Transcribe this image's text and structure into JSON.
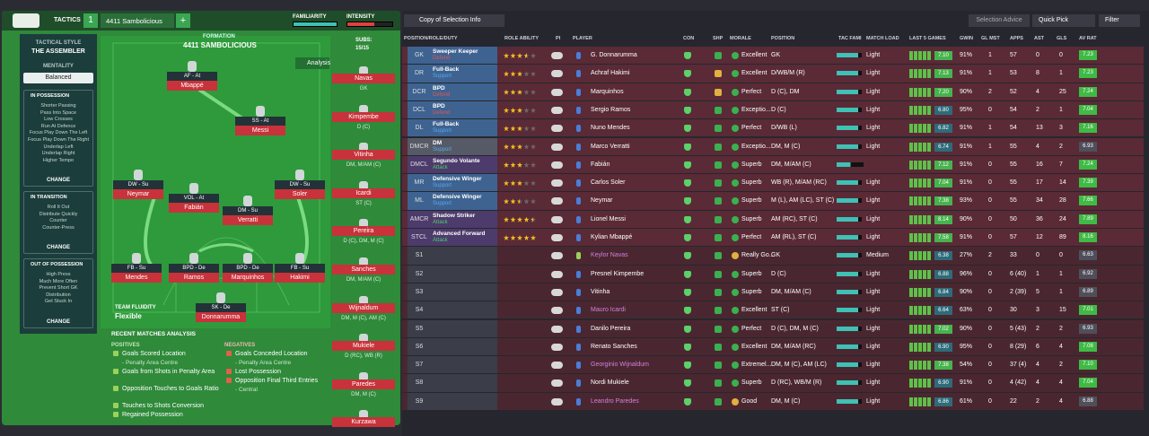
{
  "header": {
    "tactics": "TACTICS",
    "slot": "1",
    "tactic_name": "4411 Sambolicious",
    "add": "+",
    "familiarity": "FAMILIARITY",
    "intensity": "INTENSITY"
  },
  "sidebar": {
    "style_label": "TACTICAL STYLE",
    "style": "THE ASSEMBLER",
    "mentality_label": "MENTALITY",
    "mentality": "Balanced",
    "sections": [
      {
        "title": "IN POSSESSION",
        "items": [
          "Shorter Passing",
          "Pass Into Space",
          "Low Crosses",
          "Run At Defence",
          "Focus Play Down The Left",
          "Focus Play Down The Right",
          "Underlap Left",
          "Underlap Right",
          "Higher Tempo"
        ],
        "button": "CHANGE"
      },
      {
        "title": "IN TRANSITION",
        "items": [
          "Roll It Out",
          "Distribute Quickly",
          "Counter",
          "Counter-Press"
        ],
        "button": "CHANGE"
      },
      {
        "title": "OUT OF POSSESSION",
        "items": [
          "High Press",
          "Much More Often",
          "Prevent Short GK",
          "Distribution",
          "Get Stuck In"
        ],
        "button": "CHANGE"
      }
    ]
  },
  "formation": {
    "label": "FORMATION",
    "name": "4411 SAMBOLICIOUS",
    "subs_label": "SUBS:",
    "subs_count": "15/15",
    "analysis": "Analysis",
    "fluidity_label": "TEAM FLUIDITY",
    "fluidity": "Flexible",
    "players": [
      {
        "role": "AF - At",
        "name": "Mbappé"
      },
      {
        "role": "SS - At",
        "name": "Messi"
      },
      {
        "role": "DW - Su",
        "name": "Neymar"
      },
      {
        "role": "VOL - At",
        "name": "Fabián"
      },
      {
        "role": "DM - Su",
        "name": "Verratti"
      },
      {
        "role": "DW - Su",
        "name": "Soler"
      },
      {
        "role": "FB - Su",
        "name": "Mendes"
      },
      {
        "role": "BPD - De",
        "name": "Ramos"
      },
      {
        "role": "BPD - De",
        "name": "Marquinhos"
      },
      {
        "role": "FB - Su",
        "name": "Hakimi"
      },
      {
        "role": "SK - De",
        "name": "Donnarumma"
      }
    ],
    "bench": [
      {
        "name": "Navas",
        "position": "GK"
      },
      {
        "name": "Kimpembe",
        "position": "D (C)"
      },
      {
        "name": "Vitinha",
        "position": "DM, M/AM (C)"
      },
      {
        "name": "Icardi",
        "position": "ST (C)"
      },
      {
        "name": "Pereira",
        "position": "D (C), DM, M (C)"
      },
      {
        "name": "Sanches",
        "position": "DM, M/AM (C)"
      },
      {
        "name": "Wijnaldum",
        "position": "DM, M (C), AM (C)"
      },
      {
        "name": "Mukiele",
        "position": "D (RC), WB (R)"
      },
      {
        "name": "Paredes",
        "position": "DM, M (C)"
      },
      {
        "name": "Kurzawa"
      }
    ]
  },
  "analysis": {
    "title": "RECENT MATCHES ANALYSIS",
    "positives_label": "POSITIVES",
    "positives": [
      {
        "text": "Goals Scored Location",
        "detail": "- Penalty Area Centre"
      },
      {
        "text": "Goals from Shots in Penalty Area"
      },
      {
        "text": "Opposition Touches to Goals Ratio"
      },
      {
        "text": "Touches to Shots Conversion"
      },
      {
        "text": "Regained Possession"
      }
    ],
    "negatives_label": "NEGATIVES",
    "negatives": [
      {
        "text": "Goals Conceded Location",
        "detail": "- Penalty Area Centre"
      },
      {
        "text": "Lost Possession"
      },
      {
        "text": "Opposition Final Third Entries",
        "detail": "- Central"
      }
    ]
  },
  "table": {
    "toolbar": {
      "view": "Copy of Selection Info",
      "advice": "Selection Advice",
      "quick_pick": "Quick Pick",
      "filter": "Filter"
    },
    "columns": [
      "POSITION/ROLE/DUTY",
      "ROLE ABILITY",
      "PI",
      "PLAYER",
      "CON",
      "SHP",
      "MORALE",
      "POSITION",
      "TAC FAMI",
      "MATCH LOAD",
      "LAST 5 GAMES",
      "GWIN",
      "GL MST",
      "APPS",
      "AST",
      "GLS",
      "AV RAT"
    ],
    "rows": [
      {
        "pos": "GK",
        "role": "Sweeper Keeper",
        "duty": "Defend",
        "stars": 3.5,
        "player": "G. Donnarumma",
        "morale": "Excellent",
        "position": "GK",
        "load": "Light",
        "form": "7.10",
        "gwin": "91%",
        "glmst": "1",
        "apps": "57",
        "ast": "0",
        "gls": "0",
        "avrat": "7.23"
      },
      {
        "pos": "DR",
        "role": "Full-Back",
        "duty": "Support",
        "stars": 3,
        "player": "Achraf Hakimi",
        "morale": "Excellent",
        "position": "D/WB/M (R)",
        "load": "Light",
        "form": "7.13",
        "gwin": "91%",
        "glmst": "1",
        "apps": "53",
        "ast": "8",
        "gls": "1",
        "avrat": "7.23"
      },
      {
        "pos": "DCR",
        "role": "BPD",
        "duty": "Defend",
        "stars": 3,
        "player": "Marquinhos",
        "morale": "Perfect",
        "position": "D (C), DM",
        "load": "Light",
        "form": "7.20",
        "gwin": "90%",
        "glmst": "2",
        "apps": "52",
        "ast": "4",
        "gls": "25",
        "avrat": "7.24"
      },
      {
        "pos": "DCL",
        "role": "BPD",
        "duty": "Defend",
        "stars": 3,
        "player": "Sergio Ramos",
        "morale": "Exceptio...",
        "position": "D (C)",
        "load": "Light",
        "form": "6.80",
        "gwin": "95%",
        "glmst": "0",
        "apps": "54",
        "ast": "2",
        "gls": "1",
        "avrat": "7.04"
      },
      {
        "pos": "DL",
        "role": "Full-Back",
        "duty": "Support",
        "stars": 3,
        "player": "Nuno Mendes",
        "morale": "Perfect",
        "position": "D/WB (L)",
        "load": "Light",
        "form": "6.82",
        "gwin": "91%",
        "glmst": "1",
        "apps": "54",
        "ast": "13",
        "gls": "3",
        "avrat": "7.16"
      },
      {
        "pos": "DMCR",
        "role": "DM",
        "duty": "Support",
        "stars": 3,
        "player": "Marco Verratti",
        "morale": "Exceptio...",
        "position": "DM, M (C)",
        "load": "Light",
        "form": "6.74",
        "gwin": "91%",
        "glmst": "1",
        "apps": "55",
        "ast": "4",
        "gls": "2",
        "avrat": "6.93"
      },
      {
        "pos": "DMCL",
        "role": "Segundo Volante",
        "duty": "Attack",
        "stars": 3,
        "player": "Fabián",
        "morale": "Superb",
        "position": "DM, M/AM (C)",
        "form": "7.12",
        "gwin": "91%",
        "glmst": "0",
        "apps": "55",
        "ast": "16",
        "gls": "7",
        "avrat": "7.24"
      },
      {
        "pos": "MR",
        "role": "Defensive Winger",
        "duty": "Support",
        "stars": 3,
        "player": "Carlos Soler",
        "morale": "Superb",
        "position": "WB (R), M/AM (RC)",
        "load": "Light",
        "form": "7.04",
        "gwin": "91%",
        "glmst": "0",
        "apps": "55",
        "ast": "17",
        "gls": "14",
        "avrat": "7.39"
      },
      {
        "pos": "ML",
        "role": "Defensive Winger",
        "duty": "Support",
        "stars": 2.5,
        "player": "Neymar",
        "morale": "Superb",
        "position": "M (L), AM (LC), ST (C)",
        "load": "Light",
        "form": "7.38",
        "gwin": "93%",
        "glmst": "0",
        "apps": "55",
        "ast": "34",
        "gls": "28",
        "avrat": "7.66"
      },
      {
        "pos": "AMCR",
        "role": "Shadow Striker",
        "duty": "Attack",
        "stars": 4.5,
        "player": "Lionel Messi",
        "morale": "Superb",
        "position": "AM (RC), ST (C)",
        "load": "Light",
        "form": "8.14",
        "gwin": "90%",
        "glmst": "0",
        "apps": "50",
        "ast": "36",
        "gls": "24",
        "avrat": "7.89"
      },
      {
        "pos": "STCL",
        "role": "Advanced Forward",
        "duty": "Attack",
        "stars": 5,
        "player": "Kylian Mbappé",
        "morale": "Perfect",
        "position": "AM (RL), ST (C)",
        "load": "Light",
        "form": "7.58",
        "gwin": "91%",
        "glmst": "0",
        "apps": "57",
        "ast": "12",
        "gls": "89",
        "avrat": "8.16"
      },
      {
        "pos": "S1",
        "player": "Keylor Navas",
        "morale": "Really Go...",
        "position": "GK",
        "load": "Medium",
        "form": "6.38",
        "gwin": "27%",
        "glmst": "2",
        "apps": "33",
        "ast": "0",
        "gls": "0",
        "avrat": "6.63"
      },
      {
        "pos": "S2",
        "player": "Presnel Kimpembe",
        "morale": "Superb",
        "position": "D (C)",
        "load": "Light",
        "form": "6.88",
        "gwin": "96%",
        "glmst": "0",
        "apps": "6 (40)",
        "ast": "1",
        "gls": "1",
        "avrat": "6.92"
      },
      {
        "pos": "S3",
        "player": "Vitinha",
        "morale": "Superb",
        "position": "DM, M/AM (C)",
        "load": "Light",
        "form": "6.84",
        "gwin": "90%",
        "glmst": "0",
        "apps": "2 (39)",
        "ast": "5",
        "gls": "1",
        "avrat": "6.89"
      },
      {
        "pos": "S4",
        "player": "Mauro Icardi",
        "morale": "Excellent",
        "position": "ST (C)",
        "load": "Light",
        "form": "6.64",
        "gwin": "63%",
        "glmst": "0",
        "apps": "30",
        "ast": "3",
        "gls": "15",
        "avrat": "7.01"
      },
      {
        "pos": "S5",
        "player": "Danilo Pereira",
        "morale": "Perfect",
        "position": "D (C), DM, M (C)",
        "load": "Light",
        "form": "7.02",
        "gwin": "90%",
        "glmst": "0",
        "apps": "5 (43)",
        "ast": "2",
        "gls": "2",
        "avrat": "6.93"
      },
      {
        "pos": "S6",
        "player": "Renato Sanches",
        "morale": "Excellent",
        "position": "DM, M/AM (RC)",
        "load": "Light",
        "form": "6.90",
        "gwin": "95%",
        "glmst": "0",
        "apps": "8 (29)",
        "ast": "6",
        "gls": "4",
        "avrat": "7.08"
      },
      {
        "pos": "S7",
        "player": "Georginio Wijnaldum",
        "morale": "Extremel...",
        "position": "DM, M (C), AM (LC)",
        "load": "Light",
        "form": "7.38",
        "gwin": "54%",
        "glmst": "0",
        "apps": "37 (4)",
        "ast": "4",
        "gls": "2",
        "avrat": "7.10"
      },
      {
        "pos": "S8",
        "player": "Nordi Mukiele",
        "morale": "Superb",
        "position": "D (RC), WB/M (R)",
        "load": "Light",
        "form": "6.90",
        "gwin": "91%",
        "glmst": "0",
        "apps": "4 (42)",
        "ast": "4",
        "gls": "4",
        "avrat": "7.04"
      },
      {
        "pos": "S9",
        "player": "Leandro Paredes",
        "morale": "Good",
        "position": "DM, M (C)",
        "load": "Light",
        "form": "6.86",
        "gwin": "61%",
        "glmst": "0",
        "apps": "22",
        "ast": "2",
        "gls": "4",
        "avrat": "6.88"
      }
    ]
  }
}
